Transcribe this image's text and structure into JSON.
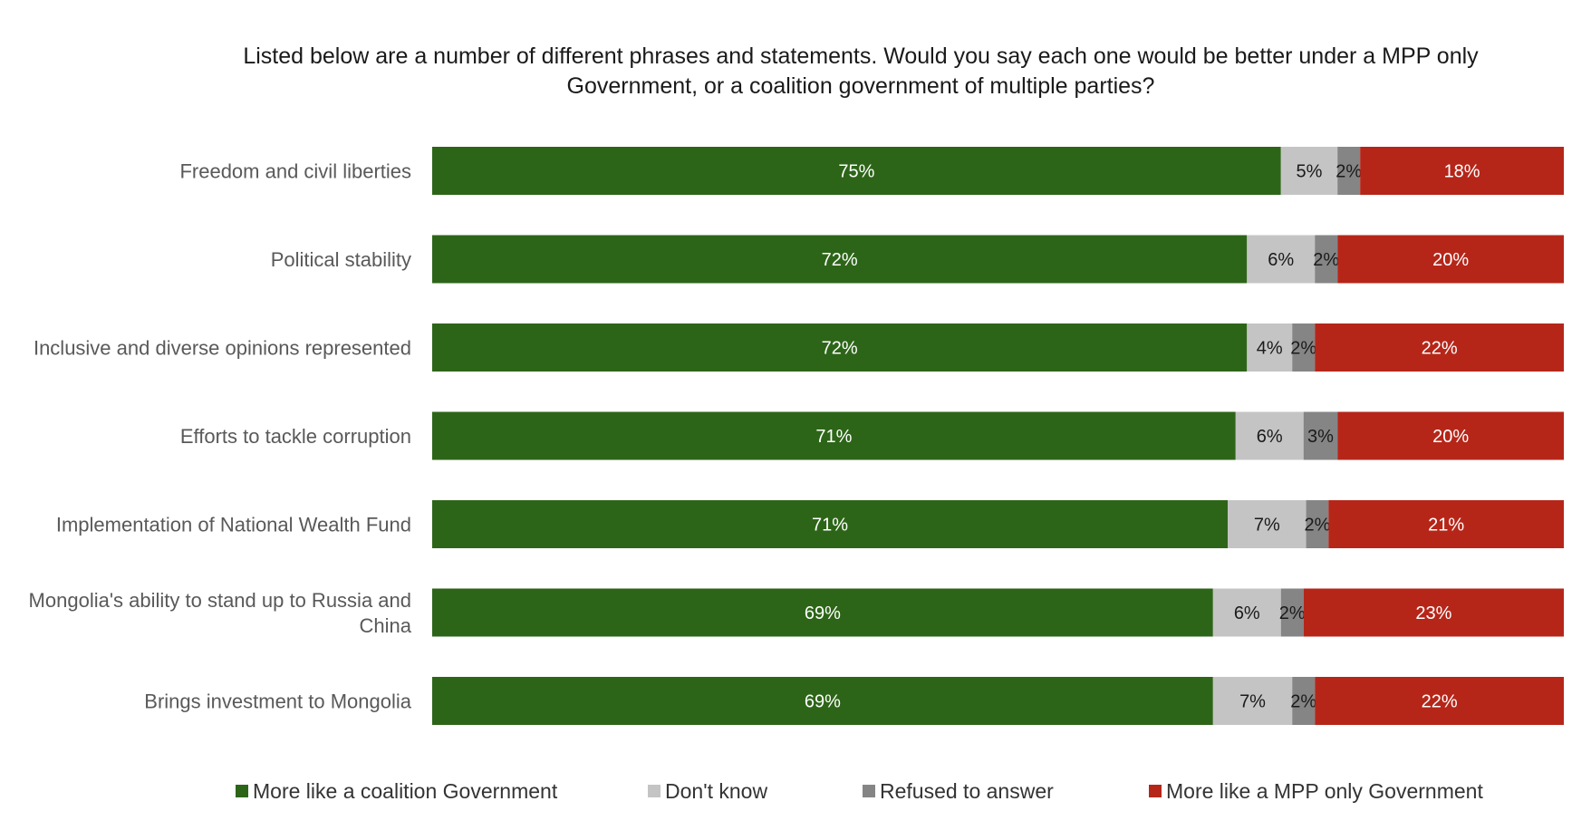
{
  "chart_data": {
    "type": "bar",
    "orientation": "horizontal",
    "stacked": true,
    "title_lines": [
      "Listed below are a number of different phrases and statements. Would you say each one would be better under a MPP only",
      "Government, or a coalition government of multiple parties?"
    ],
    "categories": [
      [
        "Freedom and civil liberties"
      ],
      [
        "Political stability"
      ],
      [
        "Inclusive and diverse opinions represented"
      ],
      [
        "Efforts to tackle corruption"
      ],
      [
        "Implementation of National Wealth Fund"
      ],
      [
        "Mongolia's ability to stand up to Russia and",
        "China"
      ],
      [
        "Brings investment to Mongolia"
      ]
    ],
    "xlim": [
      0,
      100
    ],
    "unit": "%",
    "grid": false,
    "legend_position": "bottom",
    "series": [
      {
        "name": "More like a coalition Government",
        "color": "#2d6518",
        "label_color": "#ffffff",
        "values": [
          75,
          72,
          72,
          71,
          71,
          69,
          69
        ],
        "labels": [
          "75%",
          "72%",
          "72%",
          "71%",
          "71%",
          "69%",
          "69%"
        ]
      },
      {
        "name": "Don't know",
        "color": "#c4c4c4",
        "label_color": "#1a1a1a",
        "values": [
          5,
          6,
          4,
          6,
          7,
          6,
          7
        ],
        "labels": [
          "5%",
          "6%",
          "4%",
          "6%",
          "7%",
          "6%",
          "7%"
        ]
      },
      {
        "name": "Refused to answer",
        "color": "#858585",
        "label_color": "#1a1a1a",
        "values": [
          2,
          2,
          2,
          3,
          2,
          2,
          2
        ],
        "labels": [
          "2%",
          "2%",
          "2%",
          "3%",
          "2%",
          "2%",
          "2%"
        ]
      },
      {
        "name": "More like a MPP only Government",
        "color": "#b52619",
        "label_color": "#ffffff",
        "values": [
          18,
          20,
          22,
          20,
          21,
          23,
          22
        ],
        "labels": [
          "18%",
          "20%",
          "22%",
          "20%",
          "21%",
          "23%",
          "22%"
        ]
      }
    ]
  }
}
